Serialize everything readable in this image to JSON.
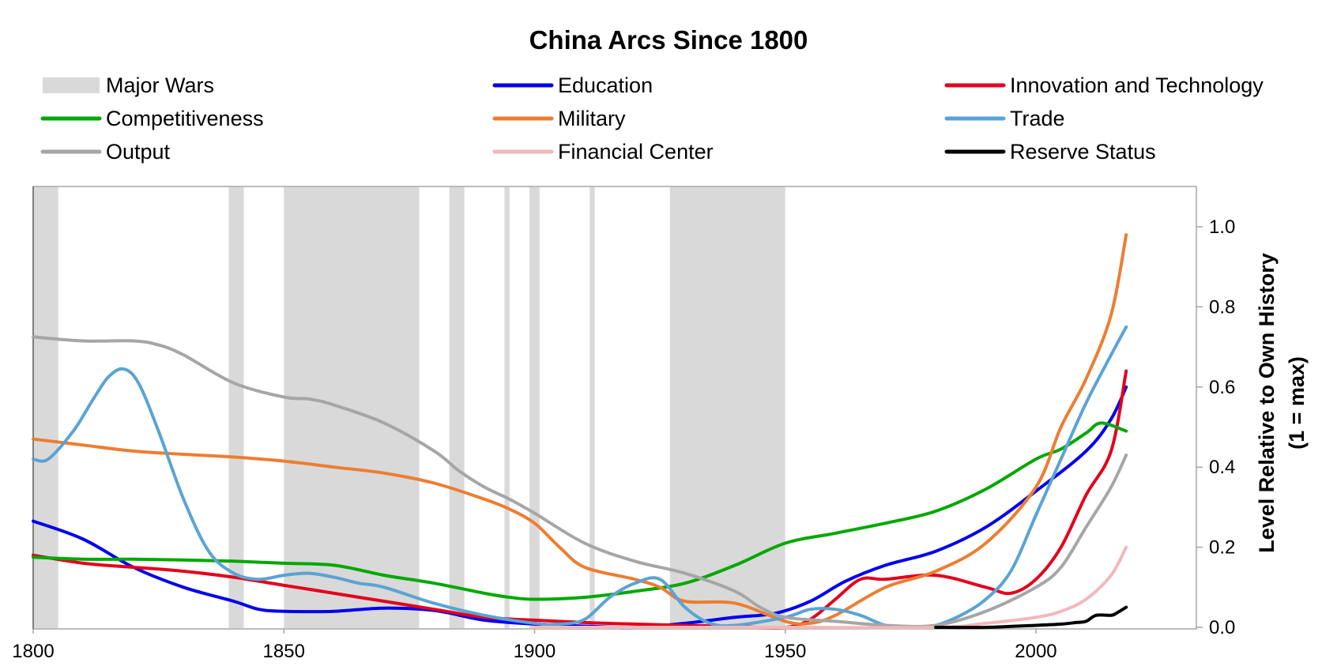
{
  "chart_data": {
    "type": "line",
    "title": "China Arcs Since 1800",
    "xlabel": "",
    "ylabel": "Level Relative to Own History (1 = max)",
    "ylabel_lines": [
      "Level Relative to Own History",
      "(1 = max)"
    ],
    "xlim": [
      1800,
      2032
    ],
    "ylim": [
      0,
      1.1
    ],
    "x_ticks": [
      1800,
      1850,
      1900,
      1950,
      2000
    ],
    "y_ticks": [
      "0.0",
      "0.2",
      "0.4",
      "0.6",
      "0.8",
      "1.0"
    ],
    "y_axis_side": "right",
    "legend_position": "top",
    "major_wars_label": "Major Wars",
    "major_wars_color": "#d9d9d9",
    "major_wars": [
      [
        1800,
        1805
      ],
      [
        1839,
        1842
      ],
      [
        1850,
        1877
      ],
      [
        1883,
        1886
      ],
      [
        1894,
        1895
      ],
      [
        1899,
        1901
      ],
      [
        1911,
        1912
      ],
      [
        1927,
        1950
      ]
    ],
    "series": [
      {
        "name": "Education",
        "color": "#0000ee",
        "points": [
          [
            1800,
            0.265
          ],
          [
            1810,
            0.22
          ],
          [
            1820,
            0.15
          ],
          [
            1830,
            0.1
          ],
          [
            1840,
            0.065
          ],
          [
            1845,
            0.045
          ],
          [
            1850,
            0.04
          ],
          [
            1860,
            0.04
          ],
          [
            1870,
            0.048
          ],
          [
            1880,
            0.042
          ],
          [
            1890,
            0.018
          ],
          [
            1900,
            0.008
          ],
          [
            1910,
            0.003
          ],
          [
            1920,
            0.0
          ],
          [
            1930,
            0.01
          ],
          [
            1940,
            0.025
          ],
          [
            1948,
            0.035
          ],
          [
            1955,
            0.065
          ],
          [
            1962,
            0.115
          ],
          [
            1970,
            0.155
          ],
          [
            1980,
            0.19
          ],
          [
            1990,
            0.25
          ],
          [
            2000,
            0.34
          ],
          [
            2010,
            0.44
          ],
          [
            2015,
            0.52
          ],
          [
            2018,
            0.6
          ]
        ]
      },
      {
        "name": "Innovation and Technology",
        "color": "#e3001b",
        "points": [
          [
            1800,
            0.18
          ],
          [
            1810,
            0.16
          ],
          [
            1820,
            0.15
          ],
          [
            1830,
            0.14
          ],
          [
            1840,
            0.125
          ],
          [
            1850,
            0.105
          ],
          [
            1860,
            0.085
          ],
          [
            1870,
            0.065
          ],
          [
            1880,
            0.045
          ],
          [
            1890,
            0.025
          ],
          [
            1900,
            0.018
          ],
          [
            1910,
            0.012
          ],
          [
            1920,
            0.008
          ],
          [
            1930,
            0.005
          ],
          [
            1940,
            0.002
          ],
          [
            1950,
            0.0
          ],
          [
            1955,
            0.02
          ],
          [
            1960,
            0.07
          ],
          [
            1965,
            0.12
          ],
          [
            1970,
            0.12
          ],
          [
            1980,
            0.13
          ],
          [
            1990,
            0.1
          ],
          [
            1995,
            0.085
          ],
          [
            2000,
            0.12
          ],
          [
            2005,
            0.2
          ],
          [
            2010,
            0.33
          ],
          [
            2015,
            0.44
          ],
          [
            2018,
            0.64
          ]
        ]
      },
      {
        "name": "Competitiveness",
        "color": "#00a800",
        "points": [
          [
            1800,
            0.175
          ],
          [
            1810,
            0.17
          ],
          [
            1820,
            0.17
          ],
          [
            1830,
            0.168
          ],
          [
            1840,
            0.165
          ],
          [
            1850,
            0.16
          ],
          [
            1860,
            0.155
          ],
          [
            1870,
            0.13
          ],
          [
            1880,
            0.11
          ],
          [
            1890,
            0.085
          ],
          [
            1895,
            0.075
          ],
          [
            1900,
            0.07
          ],
          [
            1910,
            0.075
          ],
          [
            1920,
            0.09
          ],
          [
            1930,
            0.11
          ],
          [
            1940,
            0.155
          ],
          [
            1950,
            0.21
          ],
          [
            1960,
            0.235
          ],
          [
            1970,
            0.26
          ],
          [
            1980,
            0.29
          ],
          [
            1990,
            0.345
          ],
          [
            2000,
            0.42
          ],
          [
            2005,
            0.445
          ],
          [
            2010,
            0.485
          ],
          [
            2013,
            0.51
          ],
          [
            2018,
            0.49
          ]
        ]
      },
      {
        "name": "Military",
        "color": "#ed7d31",
        "points": [
          [
            1800,
            0.47
          ],
          [
            1810,
            0.455
          ],
          [
            1820,
            0.44
          ],
          [
            1830,
            0.432
          ],
          [
            1840,
            0.425
          ],
          [
            1850,
            0.415
          ],
          [
            1860,
            0.4
          ],
          [
            1870,
            0.385
          ],
          [
            1880,
            0.36
          ],
          [
            1890,
            0.32
          ],
          [
            1895,
            0.295
          ],
          [
            1900,
            0.26
          ],
          [
            1905,
            0.2
          ],
          [
            1910,
            0.15
          ],
          [
            1920,
            0.12
          ],
          [
            1925,
            0.1
          ],
          [
            1930,
            0.065
          ],
          [
            1940,
            0.06
          ],
          [
            1950,
            0.015
          ],
          [
            1955,
            0.01
          ],
          [
            1960,
            0.03
          ],
          [
            1970,
            0.1
          ],
          [
            1980,
            0.14
          ],
          [
            1990,
            0.21
          ],
          [
            2000,
            0.35
          ],
          [
            2005,
            0.5
          ],
          [
            2010,
            0.62
          ],
          [
            2015,
            0.78
          ],
          [
            2018,
            0.98
          ]
        ]
      },
      {
        "name": "Trade",
        "color": "#5ba3d4",
        "points": [
          [
            1800,
            0.42
          ],
          [
            1803,
            0.42
          ],
          [
            1808,
            0.49
          ],
          [
            1812,
            0.57
          ],
          [
            1815,
            0.625
          ],
          [
            1818,
            0.645
          ],
          [
            1821,
            0.61
          ],
          [
            1825,
            0.49
          ],
          [
            1830,
            0.32
          ],
          [
            1835,
            0.19
          ],
          [
            1840,
            0.135
          ],
          [
            1845,
            0.12
          ],
          [
            1850,
            0.13
          ],
          [
            1855,
            0.135
          ],
          [
            1860,
            0.125
          ],
          [
            1865,
            0.11
          ],
          [
            1870,
            0.1
          ],
          [
            1880,
            0.06
          ],
          [
            1890,
            0.03
          ],
          [
            1900,
            0.01
          ],
          [
            1905,
            0.008
          ],
          [
            1910,
            0.02
          ],
          [
            1915,
            0.075
          ],
          [
            1920,
            0.11
          ],
          [
            1925,
            0.12
          ],
          [
            1930,
            0.05
          ],
          [
            1935,
            0.01
          ],
          [
            1940,
            0.005
          ],
          [
            1950,
            0.025
          ],
          [
            1955,
            0.045
          ],
          [
            1960,
            0.045
          ],
          [
            1965,
            0.03
          ],
          [
            1970,
            0.005
          ],
          [
            1975,
            0.0
          ],
          [
            1980,
            0.005
          ],
          [
            1985,
            0.03
          ],
          [
            1990,
            0.07
          ],
          [
            1995,
            0.14
          ],
          [
            2000,
            0.28
          ],
          [
            2005,
            0.42
          ],
          [
            2010,
            0.56
          ],
          [
            2015,
            0.68
          ],
          [
            2018,
            0.75
          ]
        ]
      },
      {
        "name": "Output",
        "color": "#a6a6a6",
        "points": [
          [
            1800,
            0.725
          ],
          [
            1810,
            0.715
          ],
          [
            1820,
            0.715
          ],
          [
            1825,
            0.705
          ],
          [
            1830,
            0.68
          ],
          [
            1840,
            0.61
          ],
          [
            1850,
            0.575
          ],
          [
            1855,
            0.57
          ],
          [
            1860,
            0.555
          ],
          [
            1870,
            0.51
          ],
          [
            1880,
            0.44
          ],
          [
            1885,
            0.39
          ],
          [
            1890,
            0.35
          ],
          [
            1895,
            0.32
          ],
          [
            1900,
            0.285
          ],
          [
            1910,
            0.21
          ],
          [
            1920,
            0.165
          ],
          [
            1930,
            0.135
          ],
          [
            1940,
            0.09
          ],
          [
            1945,
            0.05
          ],
          [
            1950,
            0.025
          ],
          [
            1960,
            0.015
          ],
          [
            1970,
            0.005
          ],
          [
            1980,
            0.005
          ],
          [
            1990,
            0.04
          ],
          [
            2000,
            0.1
          ],
          [
            2005,
            0.15
          ],
          [
            2010,
            0.25
          ],
          [
            2015,
            0.35
          ],
          [
            2018,
            0.43
          ]
        ]
      },
      {
        "name": "Financial Center",
        "color": "#f2b8bb",
        "points": [
          [
            1900,
            0.0
          ],
          [
            1950,
            0.0
          ],
          [
            1980,
            0.0
          ],
          [
            1990,
            0.01
          ],
          [
            2000,
            0.025
          ],
          [
            2005,
            0.04
          ],
          [
            2010,
            0.07
          ],
          [
            2015,
            0.13
          ],
          [
            2018,
            0.2
          ]
        ]
      },
      {
        "name": "Reserve Status",
        "color": "#000000",
        "points": [
          [
            1980,
            0.0
          ],
          [
            1990,
            0.0
          ],
          [
            2000,
            0.005
          ],
          [
            2005,
            0.008
          ],
          [
            2008,
            0.012
          ],
          [
            2010,
            0.015
          ],
          [
            2012,
            0.03
          ],
          [
            2015,
            0.03
          ],
          [
            2016,
            0.035
          ],
          [
            2018,
            0.05
          ]
        ]
      }
    ]
  }
}
